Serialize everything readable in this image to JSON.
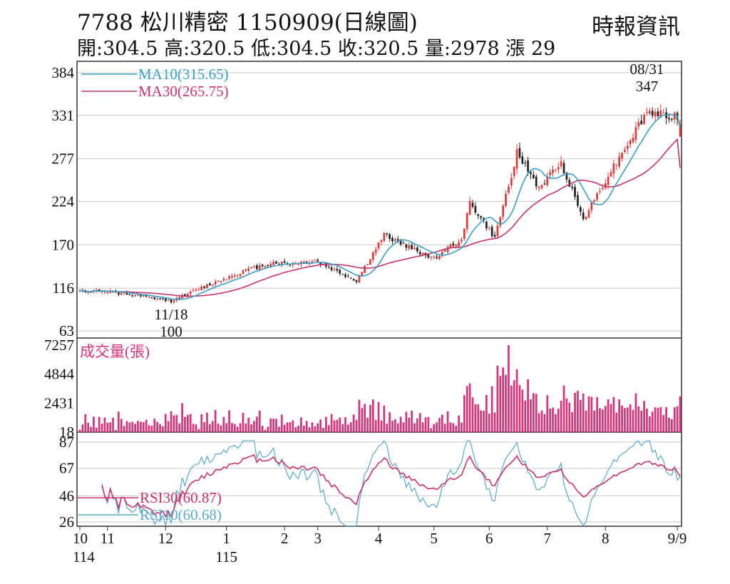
{
  "header": {
    "title": "7788  松川精密 1150909(日線圖)",
    "summary": "開:304.5 高:320.5 低:304.5 收:320.5 量:2978 漲 29",
    "source": "時報資訊"
  },
  "colors": {
    "ma10": "#3a9fc4",
    "ma30": "#c8336e",
    "up": "#e03a3a",
    "down": "#222222",
    "volume": "#d6347a",
    "rsi30": "#c8336e",
    "rsi10": "#5aa9c8",
    "grid": "#c8c8c8"
  },
  "chart_data": [
    {
      "type": "candlestick",
      "panel": "price",
      "y_ticks": [
        384,
        331,
        277,
        224,
        170,
        116,
        63
      ],
      "ylim": [
        63,
        384
      ],
      "legend": [
        {
          "name": "MA10(315.65)",
          "color": "#3a9fc4"
        },
        {
          "name": "MA30(265.75)",
          "color": "#c8336e"
        }
      ],
      "annotations": [
        {
          "text": "08/31",
          "value": "347",
          "x": 205
        },
        {
          "text": "11/18",
          "value": "100",
          "x": 33
        }
      ],
      "last": {
        "open": 304.5,
        "high": 320.5,
        "low": 304.5,
        "close": 320.5
      },
      "ma10_last": 315.65,
      "ma30_last": 265.75,
      "x_anchors": [
        0,
        12,
        33,
        50,
        75,
        100,
        125,
        145,
        165,
        185,
        205,
        217
      ],
      "close_anchors": [
        112,
        113,
        100,
        118,
        138,
        148,
        146,
        150,
        125,
        182,
        165,
        153,
        178,
        222,
        178,
        284,
        240,
        272,
        202,
        262,
        335,
        330
      ],
      "close_anchor_x": [
        0,
        8,
        33,
        45,
        60,
        70,
        76,
        85,
        100,
        110,
        120,
        128,
        138,
        141,
        150,
        158,
        166,
        174,
        182,
        192,
        205,
        217
      ]
    },
    {
      "type": "bar",
      "panel": "volume",
      "title": "成交量(張)",
      "y_ticks": [
        7257,
        4844,
        2431,
        18
      ],
      "ylim": [
        18,
        7257
      ],
      "last_volume": 2978
    },
    {
      "type": "line",
      "panel": "rsi",
      "y_ticks": [
        87,
        67,
        46,
        26
      ],
      "ylim": [
        22,
        88
      ],
      "series": [
        {
          "name": "RSI30(60.87)",
          "last": 60.87,
          "color": "#c8336e"
        },
        {
          "name": "RSI10(60.68)",
          "last": 60.68,
          "color": "#5aa9c8"
        }
      ]
    }
  ],
  "x_axis": {
    "labels": [
      {
        "text": "10",
        "sub": "114",
        "x": 0
      },
      {
        "text": "11",
        "x": 10
      },
      {
        "text": "12",
        "x": 31
      },
      {
        "text": "1",
        "sub": "115",
        "x": 53
      },
      {
        "text": "2",
        "x": 74
      },
      {
        "text": "3",
        "x": 86
      },
      {
        "text": "4",
        "x": 108
      },
      {
        "text": "5",
        "x": 128
      },
      {
        "text": "6",
        "x": 148
      },
      {
        "text": "7",
        "x": 169
      },
      {
        "text": "8",
        "x": 190
      },
      {
        "text": "9/9",
        "x": 217
      }
    ]
  }
}
